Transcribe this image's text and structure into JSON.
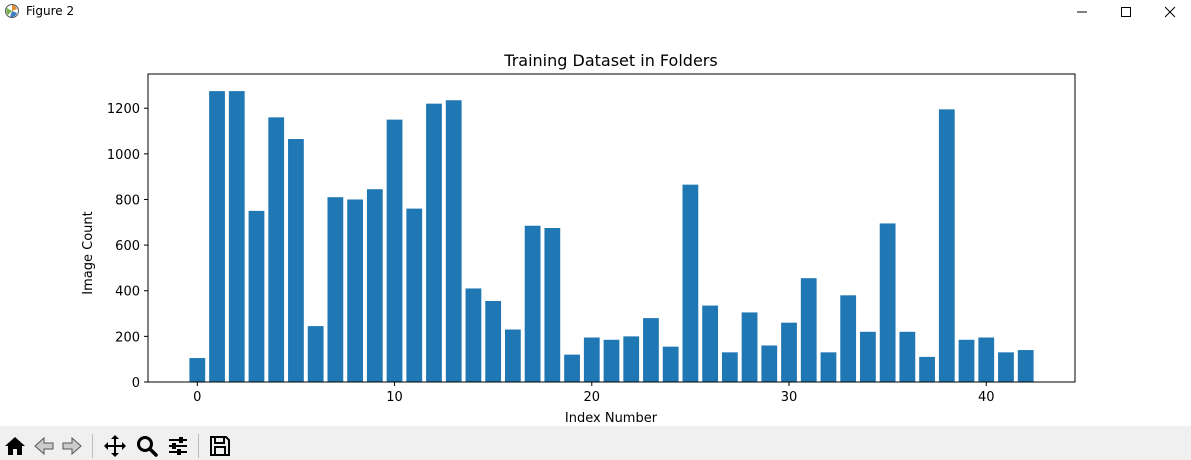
{
  "window": {
    "title": "Figure 2",
    "icon": "matplotlib-figure-icon",
    "controls": [
      "minimize-icon",
      "maximize-icon",
      "close-icon"
    ]
  },
  "toolbar": {
    "buttons": [
      "home-icon",
      "back-icon",
      "forward-icon",
      "pan-icon",
      "zoom-icon",
      "configure-subplots-icon",
      "save-icon"
    ]
  },
  "colors": {
    "bar": "#1f77b4",
    "axes": "#000000",
    "toolbar_bg": "#f0f0f0"
  },
  "chart_data": {
    "type": "bar",
    "title": "Training Dataset in Folders",
    "xlabel": "Index Number",
    "ylabel": "Image Count",
    "xlim": [
      -2.5,
      44.5
    ],
    "ylim": [
      0,
      1350
    ],
    "xticks": [
      0,
      10,
      20,
      30,
      40
    ],
    "yticks": [
      0,
      200,
      400,
      600,
      800,
      1000,
      1200
    ],
    "grid": false,
    "x": [
      0,
      1,
      2,
      3,
      4,
      5,
      6,
      7,
      8,
      9,
      10,
      11,
      12,
      13,
      14,
      15,
      16,
      17,
      18,
      19,
      20,
      21,
      22,
      23,
      24,
      25,
      26,
      27,
      28,
      29,
      30,
      31,
      32,
      33,
      34,
      35,
      36,
      37,
      38,
      39,
      40,
      41,
      42
    ],
    "values": [
      105,
      1275,
      1275,
      750,
      1160,
      1065,
      245,
      810,
      800,
      845,
      1150,
      760,
      1220,
      1235,
      410,
      355,
      230,
      685,
      675,
      120,
      195,
      185,
      200,
      280,
      155,
      865,
      335,
      130,
      305,
      160,
      260,
      455,
      130,
      380,
      220,
      695,
      220,
      110,
      1195,
      185,
      195,
      130,
      140
    ]
  }
}
